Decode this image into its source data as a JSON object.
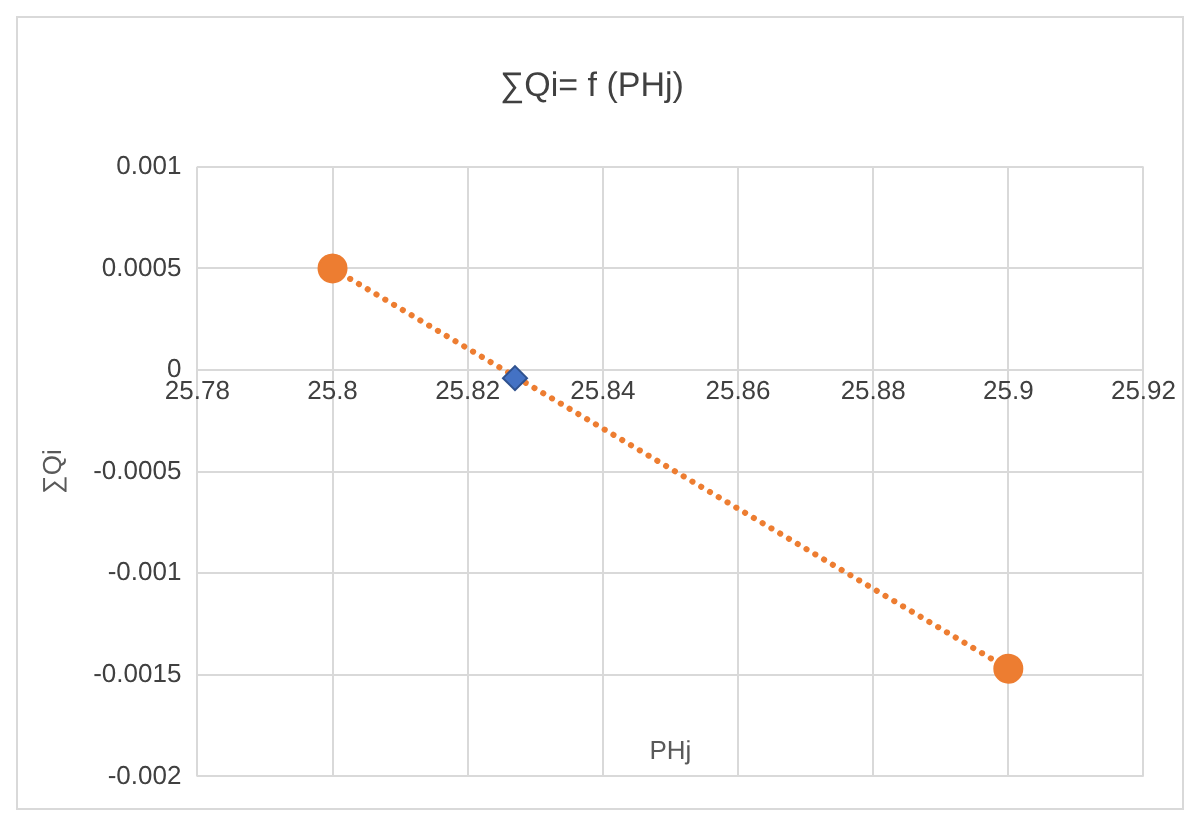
{
  "chart_data": {
    "type": "scatter",
    "title": "∑Qi= f (PHj)",
    "xlabel": "PHj",
    "ylabel": "∑Qi",
    "xlim": [
      25.78,
      25.92
    ],
    "xticks": [
      25.78,
      25.8,
      25.82,
      25.84,
      25.86,
      25.88,
      25.9,
      25.92
    ],
    "ylim": [
      -0.002,
      0.001
    ],
    "yticks": [
      -0.002,
      -0.0015,
      -0.001,
      -0.0005,
      0,
      0.0005,
      0.001
    ],
    "grid": true,
    "legend": false,
    "series": [
      {
        "type": "line",
        "color": "#ed7d31",
        "x": [
          25.8,
          25.9
        ],
        "values": [
          0.0005,
          -0.00147
        ],
        "marker": "circle",
        "line_style": "dotted"
      },
      {
        "type": "scatter",
        "color": "#4472c4",
        "x": [
          25.827
        ],
        "values": [
          -4e-05
        ],
        "marker": "diamond"
      }
    ]
  }
}
